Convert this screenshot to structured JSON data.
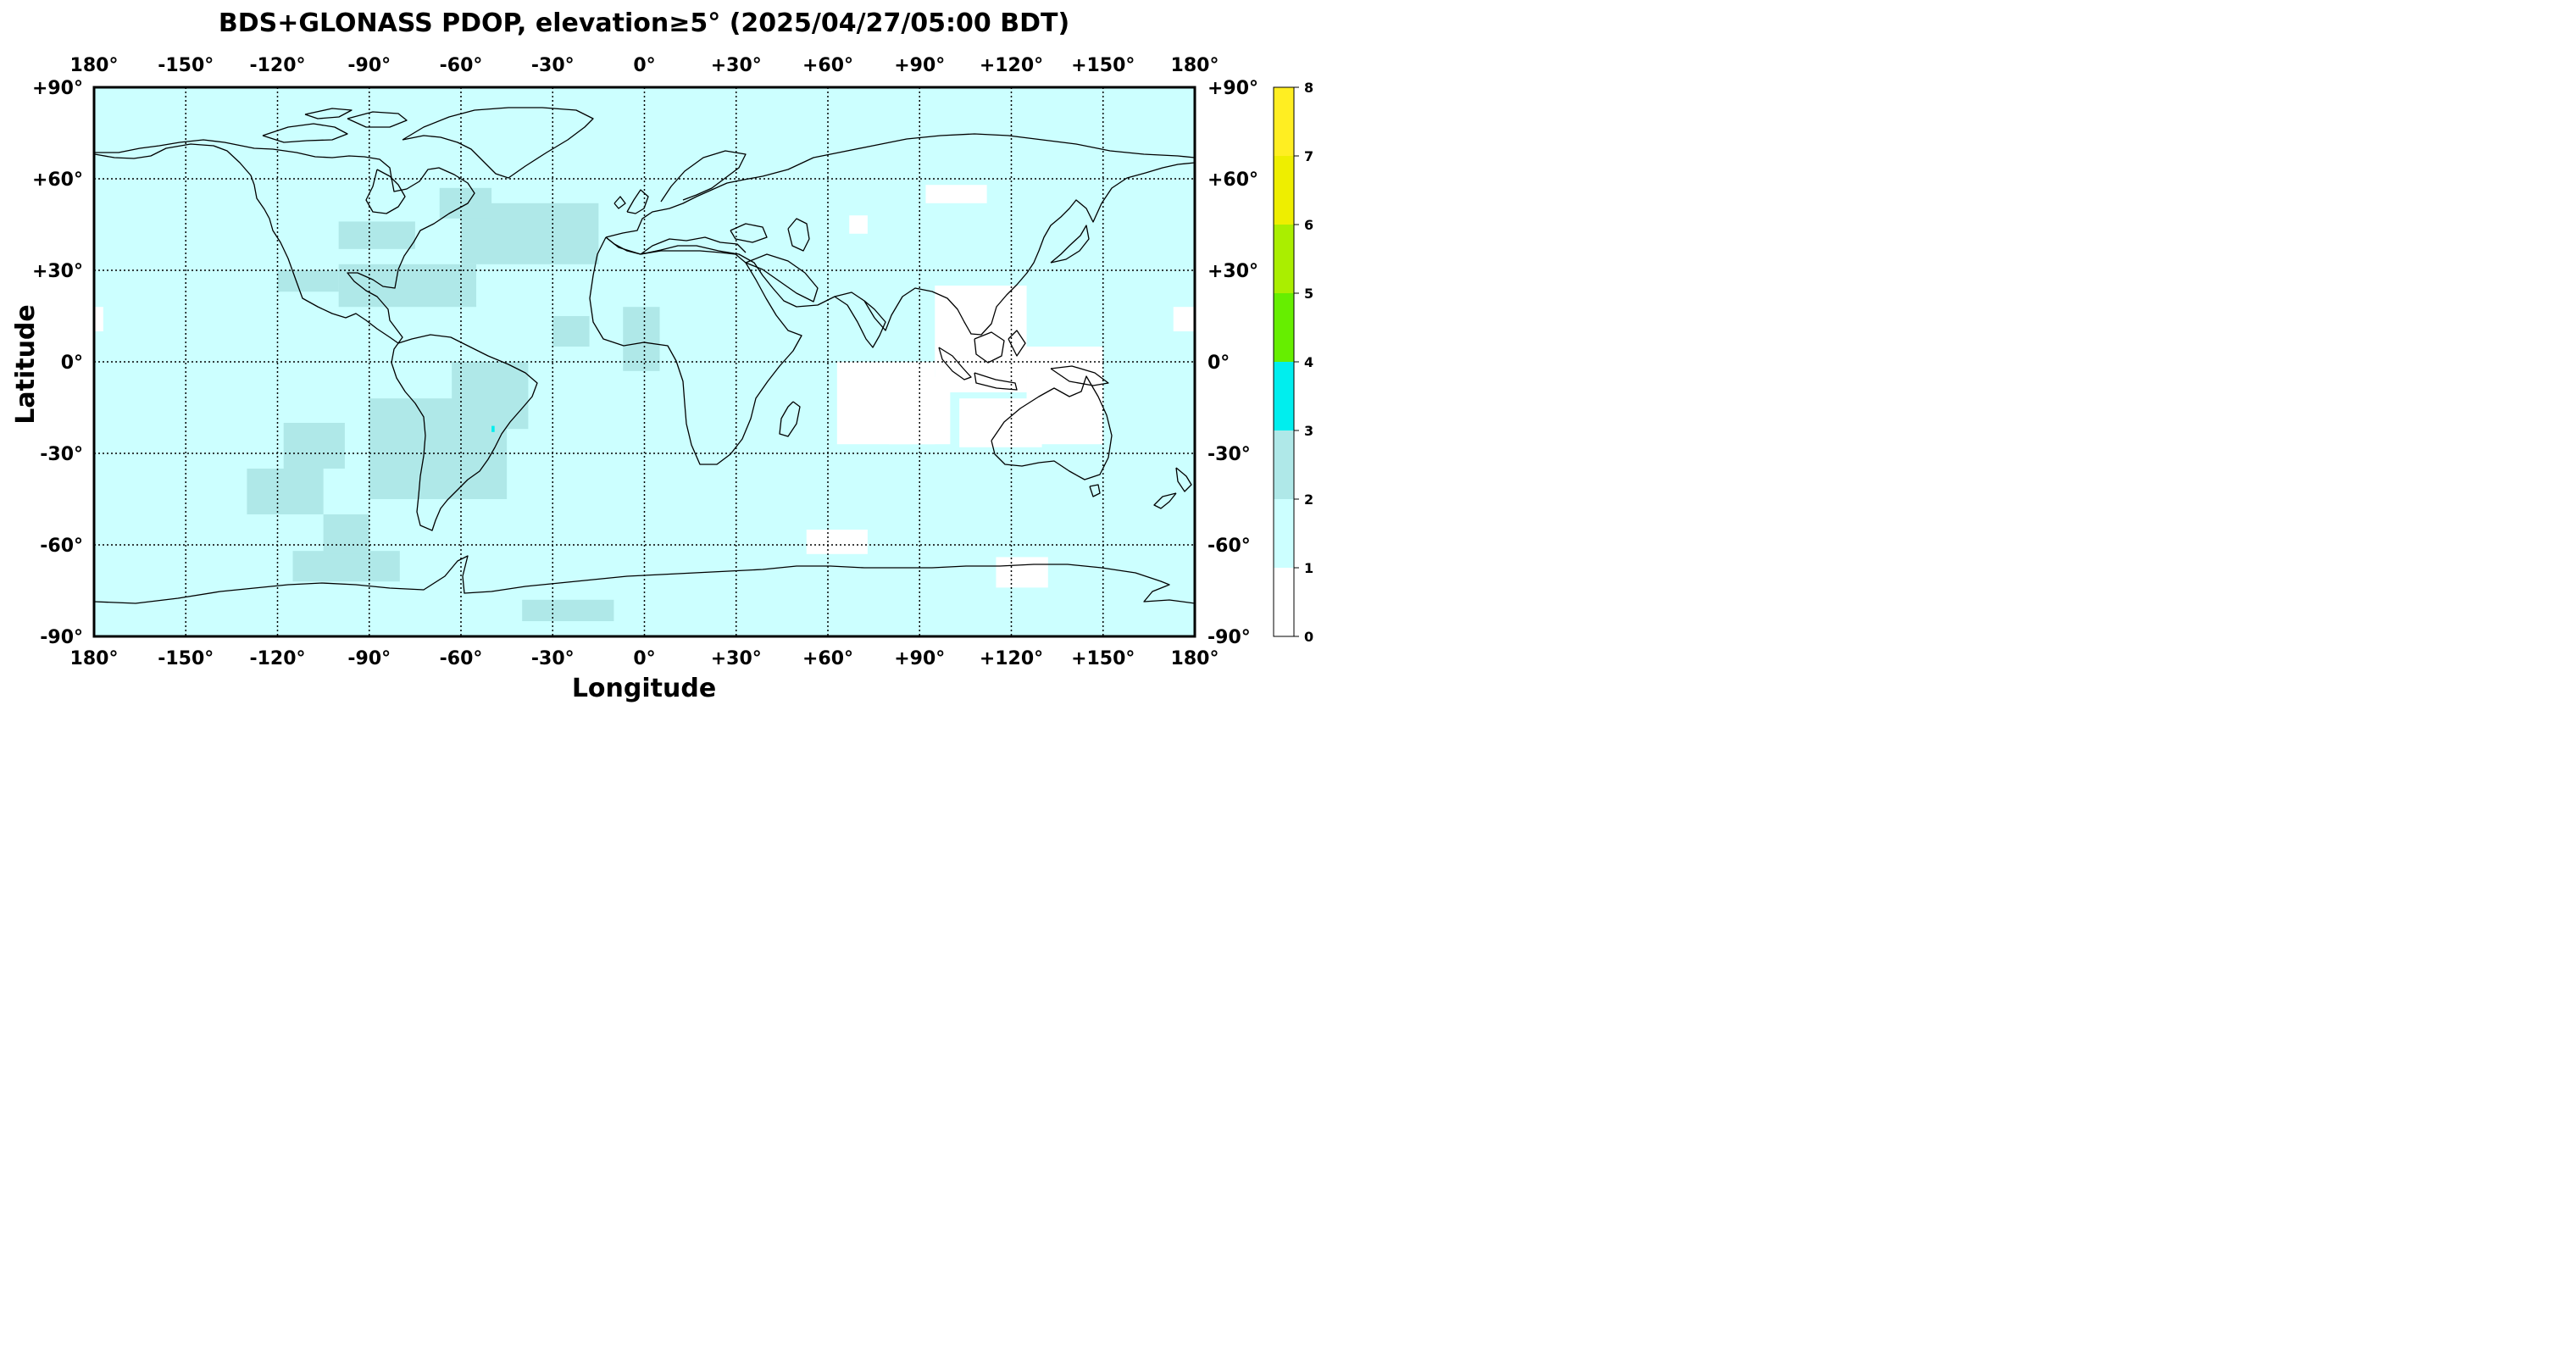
{
  "title": "BDS+GLONASS PDOP, elevation≥5° (2025/04/27/05:00 BDT)",
  "xlabel": "Longitude",
  "ylabel": "Latitude",
  "x_ticks": [
    {
      "value": -180,
      "label": "180°"
    },
    {
      "value": -150,
      "label": "-150°"
    },
    {
      "value": -120,
      "label": "-120°"
    },
    {
      "value": -90,
      "label": "-90°"
    },
    {
      "value": -60,
      "label": "-60°"
    },
    {
      "value": -30,
      "label": "-30°"
    },
    {
      "value": 0,
      "label": "0°"
    },
    {
      "value": 30,
      "label": "+30°"
    },
    {
      "value": 60,
      "label": "+60°"
    },
    {
      "value": 90,
      "label": "+90°"
    },
    {
      "value": 120,
      "label": "+120°"
    },
    {
      "value": 150,
      "label": "+150°"
    },
    {
      "value": 180,
      "label": "180°"
    }
  ],
  "y_ticks": [
    {
      "value": 90,
      "label": "+90°"
    },
    {
      "value": 60,
      "label": "+60°"
    },
    {
      "value": 30,
      "label": "+30°"
    },
    {
      "value": 0,
      "label": "0°"
    },
    {
      "value": -30,
      "label": "-30°"
    },
    {
      "value": -60,
      "label": "-60°"
    },
    {
      "value": -90,
      "label": "-90°"
    }
  ],
  "colorbar": {
    "range": [
      0,
      8
    ],
    "labels": [
      "0",
      "1",
      "2",
      "3",
      "4",
      "5",
      "6",
      "7",
      "8"
    ],
    "bins": [
      {
        "from": 0,
        "to": 1,
        "color": "#ffffff"
      },
      {
        "from": 1,
        "to": 2,
        "color": "#ccffff"
      },
      {
        "from": 2,
        "to": 3,
        "color": "#afe8e8"
      },
      {
        "from": 3,
        "to": 4,
        "color": "#00eeee"
      },
      {
        "from": 4,
        "to": 5,
        "color": "#66ee00"
      },
      {
        "from": 5,
        "to": 6,
        "color": "#aaee00"
      },
      {
        "from": 6,
        "to": 7,
        "color": "#eeee00"
      },
      {
        "from": 7,
        "to": 8,
        "color": "#ffee22"
      }
    ]
  },
  "map": {
    "lon_range": [
      -180,
      180
    ],
    "lat_range": [
      -90,
      90
    ],
    "background_pdop_bin": "1-2",
    "pdop_regions": [
      {
        "name": "low-pdop-indian-ocean-1",
        "bin": "0-1",
        "lon": [
          63,
          95
        ],
        "lat": [
          -27,
          0
        ]
      },
      {
        "name": "low-pdop-indian-ocean-2",
        "bin": "0-1",
        "lon": [
          80,
          100
        ],
        "lat": [
          -27,
          -5
        ]
      },
      {
        "name": "low-pdop-maritime-asia",
        "bin": "0-1",
        "lon": [
          95,
          125
        ],
        "lat": [
          -10,
          25
        ]
      },
      {
        "name": "low-pdop-western-australia",
        "bin": "0-1",
        "lon": [
          103,
          130
        ],
        "lat": [
          -28,
          -12
        ]
      },
      {
        "name": "low-pdop-southwest-pacific",
        "bin": "0-1",
        "lon": [
          125,
          150
        ],
        "lat": [
          -27,
          5
        ]
      },
      {
        "name": "low-pdop-siberia",
        "bin": "0-1",
        "lon": [
          92,
          112
        ],
        "lat": [
          52,
          58
        ]
      },
      {
        "name": "low-pdop-central-asia",
        "bin": "0-1",
        "lon": [
          67,
          73
        ],
        "lat": [
          42,
          48
        ]
      },
      {
        "name": "low-pdop-southern-ocean",
        "bin": "0-1",
        "lon": [
          53,
          73
        ],
        "lat": [
          -63,
          -55
        ]
      },
      {
        "name": "low-pdop-antarctic-coast",
        "bin": "0-1",
        "lon": [
          115,
          132
        ],
        "lat": [
          -74,
          -64
        ]
      },
      {
        "name": "low-pdop-east-pacific",
        "bin": "0-1",
        "lon": [
          -180,
          -177
        ],
        "lat": [
          10,
          18
        ]
      },
      {
        "name": "low-pdop-west-pacific",
        "bin": "0-1",
        "lon": [
          173,
          180
        ],
        "lat": [
          10,
          18
        ]
      },
      {
        "name": "mid-pdop-north-atlantic",
        "bin": "2-3",
        "lon": [
          -60,
          -15
        ],
        "lat": [
          32,
          52
        ]
      },
      {
        "name": "mid-pdop-gulf-of-mexico",
        "bin": "2-3",
        "lon": [
          -100,
          -55
        ],
        "lat": [
          18,
          32
        ]
      },
      {
        "name": "mid-pdop-mexico-pacific",
        "bin": "2-3",
        "lon": [
          -120,
          -100
        ],
        "lat": [
          23,
          30
        ]
      },
      {
        "name": "mid-pdop-hudson",
        "bin": "2-3",
        "lon": [
          -100,
          -75
        ],
        "lat": [
          37,
          46
        ]
      },
      {
        "name": "mid-pdop-labrador",
        "bin": "2-3",
        "lon": [
          -67,
          -50
        ],
        "lat": [
          47,
          57
        ]
      },
      {
        "name": "mid-pdop-south-america",
        "bin": "2-3",
        "lon": [
          -90,
          -45
        ],
        "lat": [
          -45,
          -12
        ]
      },
      {
        "name": "mid-pdop-brazil",
        "bin": "2-3",
        "lon": [
          -63,
          -38
        ],
        "lat": [
          -22,
          0
        ]
      },
      {
        "name": "mid-pdop-south-pacific",
        "bin": "2-3",
        "lon": [
          -130,
          -105
        ],
        "lat": [
          -50,
          -35
        ]
      },
      {
        "name": "mid-pdop-pacific-high",
        "bin": "2-3",
        "lon": [
          -118,
          -98
        ],
        "lat": [
          -35,
          -20
        ]
      },
      {
        "name": "mid-pdop-southern-ocean-1",
        "bin": "2-3",
        "lon": [
          -115,
          -80
        ],
        "lat": [
          -72,
          -62
        ]
      },
      {
        "name": "mid-pdop-southern-ocean-2",
        "bin": "2-3",
        "lon": [
          -105,
          -90
        ],
        "lat": [
          -63,
          -50
        ]
      },
      {
        "name": "mid-pdop-antarctic-sector",
        "bin": "2-3",
        "lon": [
          -40,
          -10
        ],
        "lat": [
          -85,
          -78
        ]
      },
      {
        "name": "mid-pdop-west-africa",
        "bin": "2-3",
        "lon": [
          -7,
          5
        ],
        "lat": [
          -3,
          18
        ]
      },
      {
        "name": "mid-pdop-equatorial-atlantic",
        "bin": "2-3",
        "lon": [
          -30,
          -18
        ],
        "lat": [
          5,
          15
        ]
      },
      {
        "name": "high-pdop-brazil-spot",
        "bin": "3-4",
        "lon": [
          -50,
          -49
        ],
        "lat": [
          -23,
          -21
        ]
      }
    ]
  }
}
